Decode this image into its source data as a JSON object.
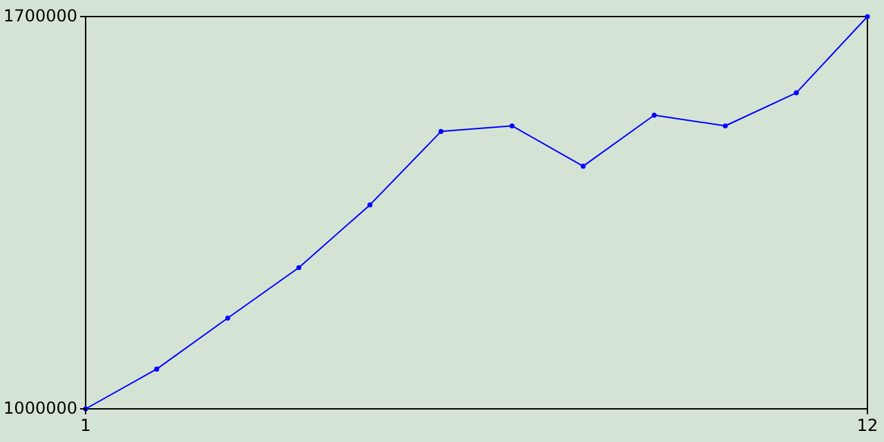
{
  "chart_data": {
    "type": "line",
    "x": [
      1,
      2,
      3,
      4,
      5,
      6,
      7,
      8,
      9,
      10,
      11,
      12
    ],
    "series": [
      {
        "color": "#0000ff",
        "values": [
          1000000,
          1071000,
          1162000,
          1252000,
          1364000,
          1495000,
          1505000,
          1433000,
          1524000,
          1505000,
          1564000,
          1700000
        ]
      }
    ],
    "xlim": [
      1,
      12
    ],
    "xticks": [
      1,
      12
    ],
    "ylim": [
      1000000,
      1700000
    ],
    "yticks": [
      1000000,
      1700000
    ],
    "marker": "circle",
    "line_style": "solid"
  }
}
